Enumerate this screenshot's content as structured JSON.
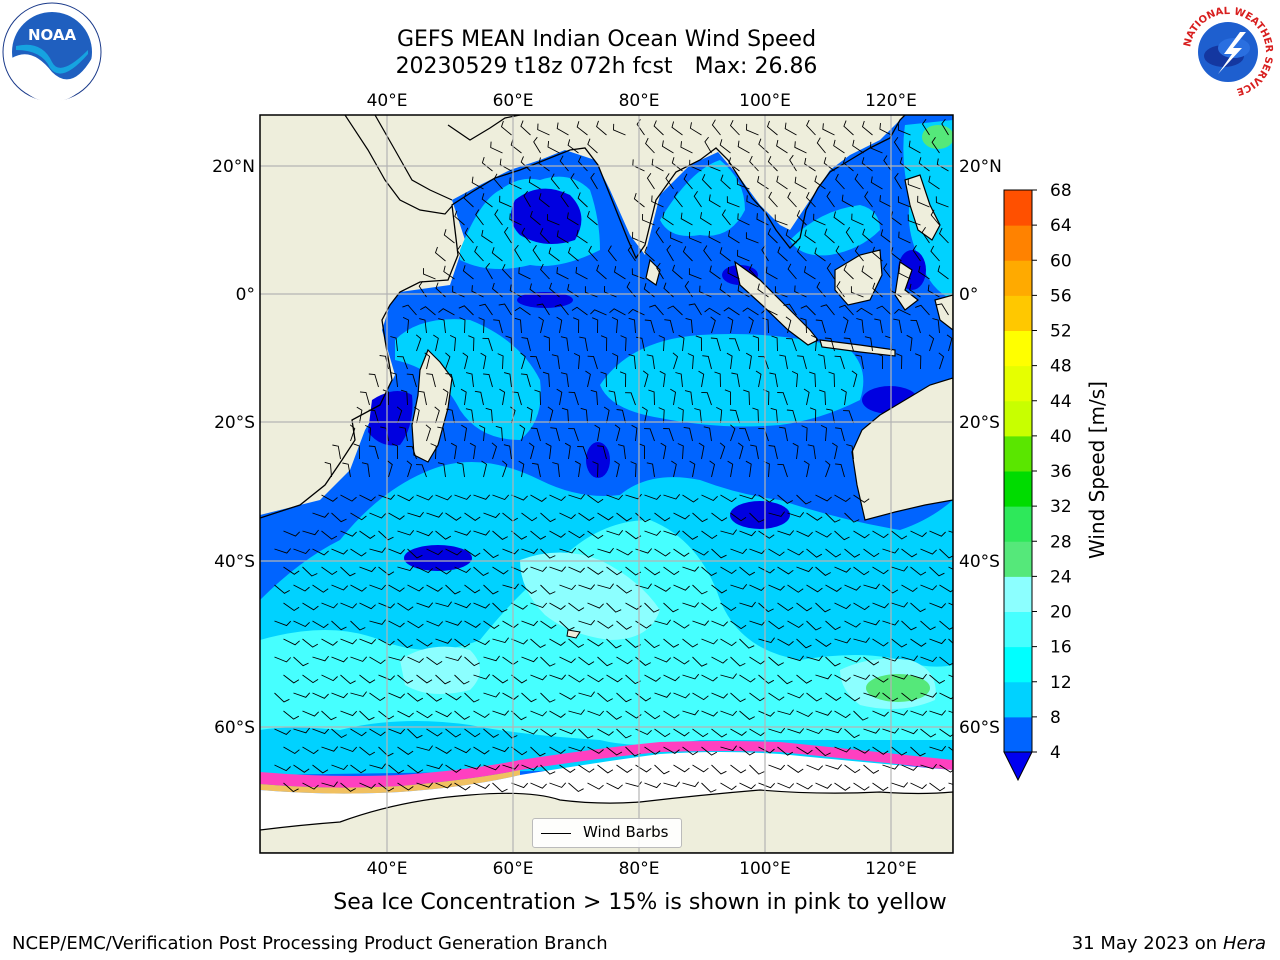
{
  "title": {
    "line1": "GEFS MEAN Indian Ocean Wind Speed",
    "line2_run": "20230529 t18z 072h fcst",
    "line2_max": "Max: 26.86"
  },
  "logos": {
    "left": "NOAA",
    "right_ring": "NATIONAL WEATHER SERVICE"
  },
  "map": {
    "lon_ticks": [
      "40°E",
      "60°E",
      "80°E",
      "100°E",
      "120°E"
    ],
    "lat_ticks": [
      "20°N",
      "0°",
      "20°S",
      "40°S",
      "60°S"
    ],
    "extent": {
      "lon": [
        20,
        130
      ],
      "lat": [
        -70,
        27
      ]
    },
    "legend_label": "Wind Barbs"
  },
  "colorbar": {
    "label": "Wind Speed [m/s]",
    "levels": [
      "4",
      "8",
      "12",
      "16",
      "20",
      "24",
      "28",
      "32",
      "36",
      "40",
      "44",
      "48",
      "52",
      "56",
      "60",
      "64",
      "68"
    ],
    "colors": [
      "#0064ff",
      "#00d2ff",
      "#00ffff",
      "#46ffff",
      "#8cffff",
      "#55e87a",
      "#2ee85a",
      "#00dc00",
      "#5ae600",
      "#c8ff00",
      "#e6ff00",
      "#ffff00",
      "#ffc800",
      "#ffaa00",
      "#ff8200",
      "#ff5000",
      "#ff1e00",
      "#ff0000"
    ],
    "underflow_color": "#0000f0"
  },
  "caption": "Sea Ice Concentration > 15% is shown in pink to yellow",
  "footer": {
    "left": "NCEP/EMC/Verification Post Processing Product Generation Branch",
    "date": "31 May 2023 on",
    "host": "Hera"
  }
}
